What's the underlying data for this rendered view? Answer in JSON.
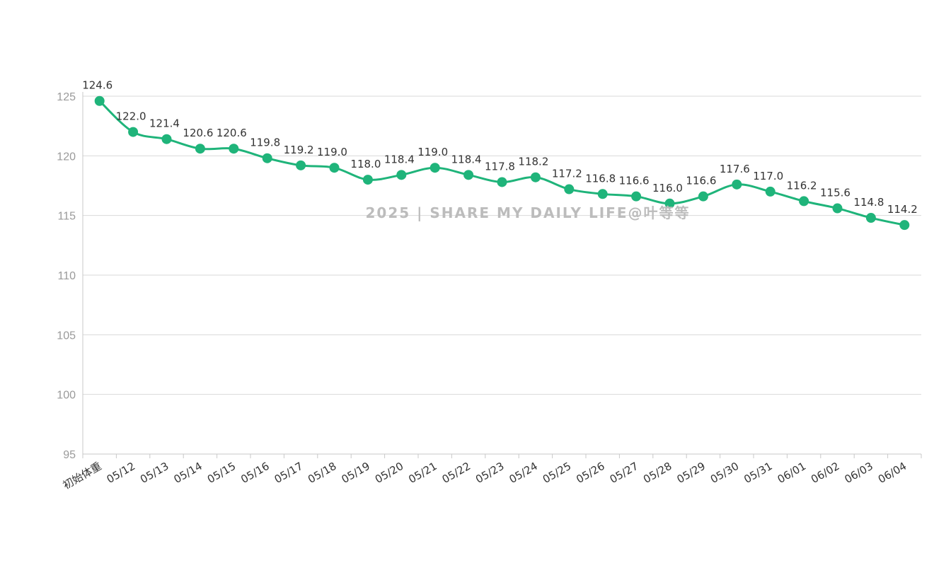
{
  "watermark": "2025 | SHARE MY DAILY LIFE@叶等等",
  "colors": {
    "line": "#1fb47a",
    "marker": "#1fb47a",
    "grid": "#d9d9d9"
  },
  "chart_data": {
    "type": "line",
    "title": "",
    "xlabel": "",
    "ylabel": "",
    "ylim": [
      95,
      125
    ],
    "yticks": [
      95,
      100,
      105,
      110,
      115,
      120,
      125
    ],
    "grid": "horizontal",
    "legend": "none",
    "categories": [
      "初始体重",
      "05/12",
      "05/13",
      "05/14",
      "05/15",
      "05/16",
      "05/17",
      "05/18",
      "05/19",
      "05/20",
      "05/21",
      "05/22",
      "05/23",
      "05/24",
      "05/25",
      "05/26",
      "05/27",
      "05/28",
      "05/29",
      "05/30",
      "05/31",
      "06/01",
      "06/02",
      "06/03",
      "06/04"
    ],
    "values": [
      124.6,
      122.0,
      121.4,
      120.6,
      120.6,
      119.8,
      119.2,
      119.0,
      118.0,
      118.4,
      119.0,
      118.4,
      117.8,
      118.2,
      117.2,
      116.8,
      116.6,
      116.0,
      116.6,
      117.6,
      117.0,
      116.2,
      115.6,
      114.8,
      114.2
    ],
    "data_labels": [
      "124.6",
      "122.0",
      "121.4",
      "120.6",
      "120.6",
      "119.8",
      "119.2",
      "119.0",
      "118.0",
      "118.4",
      "119.0",
      "118.4",
      "117.8",
      "118.2",
      "117.2",
      "116.8",
      "116.6",
      "116.0",
      "116.6",
      "117.6",
      "117.0",
      "116.2",
      "115.6",
      "114.8",
      "114.2"
    ]
  }
}
